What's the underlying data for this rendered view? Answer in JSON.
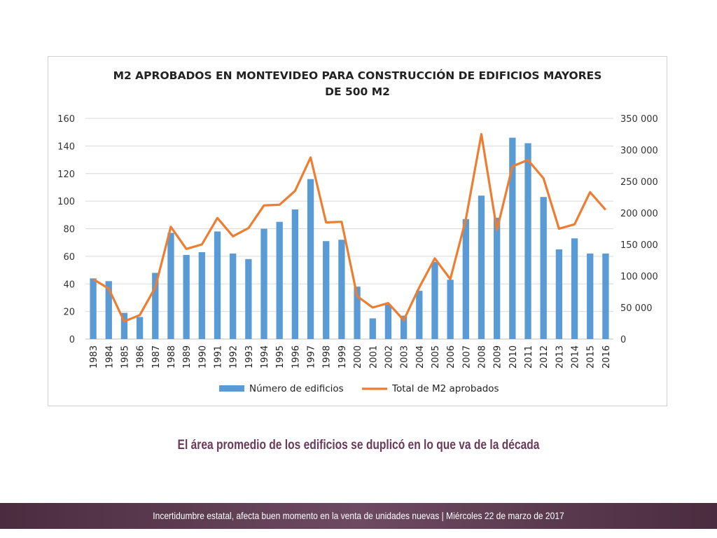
{
  "chart_data": {
    "type": "bar+line",
    "title_lines": [
      "M2 APROBADOS EN MONTEVIDEO PARA CONSTRUCCIÓN DE EDIFICIOS MAYORES",
      "DE 500 M2"
    ],
    "categories": [
      "1983",
      "1984",
      "1985",
      "1986",
      "1987",
      "1988",
      "1989",
      "1990",
      "1991",
      "1992",
      "1993",
      "1994",
      "1995",
      "1996",
      "1997",
      "1998",
      "1999",
      "2000",
      "2001",
      "2002",
      "2003",
      "2004",
      "2005",
      "2006",
      "2007",
      "2008",
      "2009",
      "2010",
      "2011",
      "2012",
      "2013",
      "2014",
      "2015",
      "2016"
    ],
    "series": [
      {
        "name": "Número de edificios",
        "type": "bar",
        "axis": "left",
        "color": "#5b9bd5",
        "values": [
          44,
          42,
          19,
          16,
          48,
          77,
          61,
          63,
          78,
          62,
          58,
          80,
          85,
          94,
          116,
          71,
          72,
          38,
          15,
          25,
          17,
          35,
          56,
          43,
          87,
          104,
          88,
          146,
          142,
          103,
          65,
          73,
          62,
          62
        ]
      },
      {
        "name": "Total de M2 aprobados",
        "type": "line",
        "axis": "right",
        "color": "#ed7d31",
        "values": [
          95000,
          80000,
          28000,
          38000,
          82000,
          178000,
          143000,
          150000,
          192000,
          163000,
          176000,
          212000,
          213000,
          235000,
          288000,
          185000,
          186000,
          68000,
          50000,
          57000,
          30000,
          82000,
          128000,
          95000,
          190000,
          325000,
          173000,
          274000,
          284000,
          255000,
          175000,
          182000,
          233000,
          205000
        ]
      }
    ],
    "y_left": {
      "min": 0,
      "max": 160,
      "step": 20,
      "tick_labels": [
        "0",
        "20",
        "40",
        "60",
        "80",
        "100",
        "120",
        "140",
        "160"
      ]
    },
    "y_right": {
      "min": 0,
      "max": 350000,
      "step": 50000,
      "tick_labels": [
        "0",
        "50 000",
        "100 000",
        "150 000",
        "200 000",
        "250 000",
        "300 000",
        "350 000"
      ]
    },
    "legend_position": "bottom",
    "grid": true
  },
  "subtitle": "El área promedio de los edificios se duplicó en lo que va de la década",
  "footer": "Incertidumbre estatal, afecta buen momento en la venta de unidades nuevas | Miércoles 22 de marzo de 2017",
  "colors": {
    "subtitle": "#6b3a5a",
    "footer_bg": "#5a3a50"
  }
}
